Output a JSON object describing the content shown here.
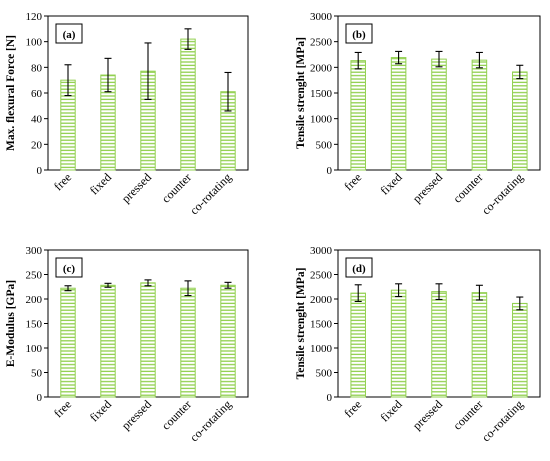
{
  "chart_data": [
    {
      "type": "bar",
      "panel_label": "(a)",
      "ylabel": "Max. flexural Force [N]",
      "ylim": [
        0,
        120
      ],
      "yticks": [
        0,
        20,
        40,
        60,
        80,
        100,
        120
      ],
      "categories": [
        "free",
        "fixed",
        "pressed",
        "counter",
        "co-rotating"
      ],
      "values": [
        70,
        74,
        77,
        102,
        61
      ],
      "errors": [
        12,
        13,
        22,
        8,
        15
      ],
      "bar_color": "#92d050",
      "legend": "none"
    },
    {
      "type": "bar",
      "panel_label": "(b)",
      "ylabel": "Tensile strenght [MPa]",
      "ylim": [
        0,
        3000
      ],
      "yticks": [
        0,
        500,
        1000,
        1500,
        2000,
        2500,
        3000
      ],
      "categories": [
        "free",
        "fixed",
        "pressed",
        "counter",
        "co-rotating"
      ],
      "values": [
        2130,
        2190,
        2160,
        2140,
        1910
      ],
      "errors": [
        160,
        120,
        150,
        150,
        130
      ],
      "bar_color": "#92d050",
      "legend": "none"
    },
    {
      "type": "bar",
      "panel_label": "(c)",
      "ylabel": "E-Modulus [GPa]",
      "ylim": [
        0,
        300
      ],
      "yticks": [
        0,
        50,
        100,
        150,
        200,
        250,
        300
      ],
      "categories": [
        "free",
        "fixed",
        "pressed",
        "counter",
        "co-rotating"
      ],
      "values": [
        222,
        228,
        233,
        222,
        228
      ],
      "errors": [
        5,
        4,
        6,
        15,
        6
      ],
      "bar_color": "#92d050",
      "legend": "none"
    },
    {
      "type": "bar",
      "panel_label": "(d)",
      "ylabel": "Tensile strenght [MPa]",
      "ylim": [
        0,
        3000
      ],
      "yticks": [
        0,
        500,
        1000,
        1500,
        2000,
        2500,
        3000
      ],
      "categories": [
        "free",
        "fixed",
        "pressed",
        "counter",
        "co-rotating"
      ],
      "values": [
        2120,
        2180,
        2150,
        2130,
        1910
      ],
      "errors": [
        170,
        130,
        160,
        150,
        130
      ],
      "bar_color": "#92d050",
      "legend": "none"
    }
  ]
}
